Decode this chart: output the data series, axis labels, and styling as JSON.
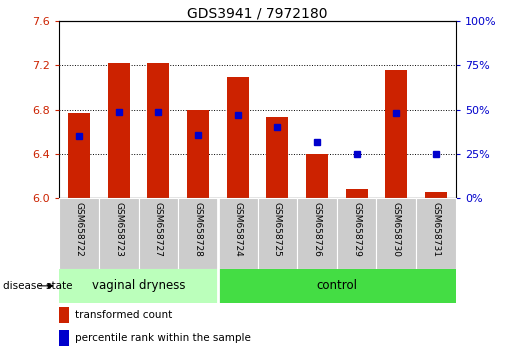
{
  "title": "GDS3941 / 7972180",
  "samples": [
    "GSM658722",
    "GSM658723",
    "GSM658727",
    "GSM658728",
    "GSM658724",
    "GSM658725",
    "GSM658726",
    "GSM658729",
    "GSM658730",
    "GSM658731"
  ],
  "red_values": [
    6.77,
    7.22,
    7.22,
    6.8,
    7.1,
    6.73,
    6.4,
    6.08,
    7.16,
    6.06
  ],
  "blue_pct": [
    35,
    49,
    49,
    36,
    47,
    40,
    32,
    25,
    48,
    25
  ],
  "y_min": 6.0,
  "y_max": 7.6,
  "y_ticks": [
    6.0,
    6.4,
    6.8,
    7.2,
    7.6
  ],
  "pct_min": 0,
  "pct_max": 100,
  "pct_ticks": [
    0,
    25,
    50,
    75,
    100
  ],
  "pct_tick_labels": [
    "0%",
    "25%",
    "50%",
    "75%",
    "100%"
  ],
  "group1_label": "vaginal dryness",
  "group1_count": 4,
  "group2_label": "control",
  "group2_count": 6,
  "disease_state_label": "disease state",
  "legend_red": "transformed count",
  "legend_blue": "percentile rank within the sample",
  "bar_color": "#cc2200",
  "dot_color": "#0000cc",
  "group1_bg": "#bbffbb",
  "group2_bg": "#44dd44",
  "tick_bg": "#cccccc",
  "left_tick_color": "#cc2200",
  "right_tick_color": "#0000cc",
  "bar_width": 0.55
}
